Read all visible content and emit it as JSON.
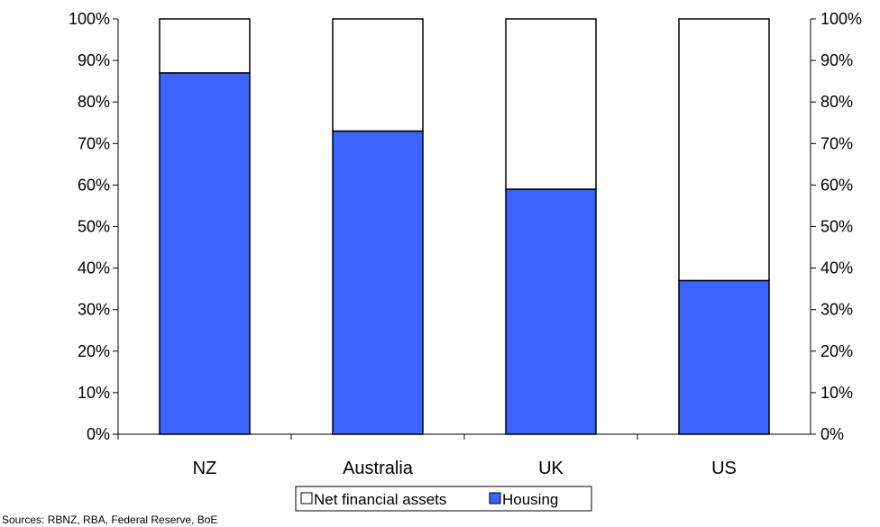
{
  "chart_data": {
    "type": "bar",
    "stacked": true,
    "categories": [
      "NZ",
      "Australia",
      "UK",
      "US"
    ],
    "series": [
      {
        "name": "Housing",
        "values": [
          87,
          73,
          59,
          37
        ],
        "color": "#3a63ff"
      },
      {
        "name": "Net financial assets",
        "values": [
          13,
          27,
          41,
          63
        ],
        "color": "#ffffff"
      }
    ],
    "ylim": [
      0,
      100
    ],
    "y_ticks": [
      "0%",
      "10%",
      "20%",
      "30%",
      "40%",
      "50%",
      "60%",
      "70%",
      "80%",
      "90%",
      "100%"
    ],
    "secondary_axis": true,
    "grid": false,
    "legend_position": "bottom",
    "legend": [
      "Net financial assets",
      "Housing"
    ],
    "source": "Sources: RBNZ, RBA, Federal Reserve, BoE"
  }
}
